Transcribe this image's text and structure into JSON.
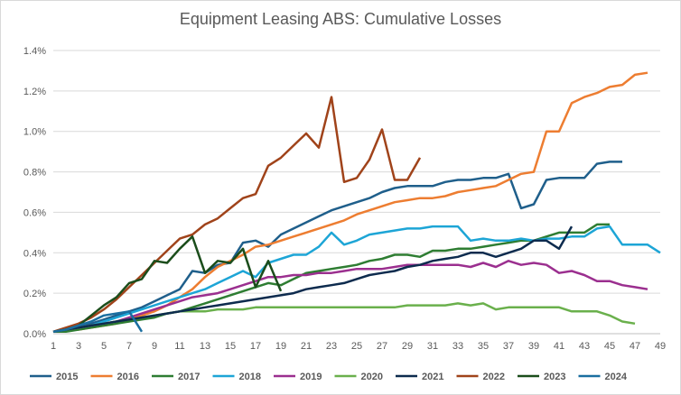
{
  "chart_data": {
    "type": "line",
    "title": "Equipment Leasing ABS: Cumulative Losses",
    "xlabel": "",
    "ylabel": "",
    "xlim": [
      1,
      49
    ],
    "ylim": [
      0,
      0.014
    ],
    "x_ticks": [
      1,
      3,
      5,
      7,
      9,
      11,
      13,
      15,
      17,
      19,
      21,
      23,
      25,
      27,
      29,
      31,
      33,
      35,
      37,
      39,
      41,
      43,
      45,
      47,
      49
    ],
    "y_ticks": [
      {
        "value": 0,
        "label": "0.0%"
      },
      {
        "value": 0.002,
        "label": "0.2%"
      },
      {
        "value": 0.004,
        "label": "0.4%"
      },
      {
        "value": 0.006,
        "label": "0.6%"
      },
      {
        "value": 0.008,
        "label": "0.8%"
      },
      {
        "value": 0.01,
        "label": "1.0%"
      },
      {
        "value": 0.012,
        "label": "1.2%"
      },
      {
        "value": 0.014,
        "label": "1.4%"
      }
    ],
    "grid": true,
    "legend_position": "bottom",
    "series": [
      {
        "name": "2015",
        "color": "#1f5f8b",
        "x_start": 1,
        "values": [
          0.0001,
          0.0002,
          0.0003,
          0.0005,
          0.0007,
          0.0009,
          0.0011,
          0.0013,
          0.0016,
          0.0019,
          0.0022,
          0.0031,
          0.003,
          0.0034,
          0.0035,
          0.0045,
          0.0046,
          0.0043,
          0.0049,
          0.0052,
          0.0055,
          0.0058,
          0.0061,
          0.0063,
          0.0065,
          0.0067,
          0.007,
          0.0072,
          0.0073,
          0.0073,
          0.0073,
          0.0075,
          0.0076,
          0.0076,
          0.0077,
          0.0077,
          0.0079,
          0.0062,
          0.0064,
          0.0076,
          0.0077,
          0.0077,
          0.0077,
          0.0084,
          0.0085,
          0.0085
        ]
      },
      {
        "name": "2016",
        "color": "#ed7d31",
        "x_start": 1,
        "values": [
          0.0001,
          0.0002,
          0.0002,
          0.0003,
          0.0004,
          0.0005,
          0.0007,
          0.0009,
          0.0011,
          0.0014,
          0.0018,
          0.0022,
          0.0028,
          0.0033,
          0.0036,
          0.0039,
          0.0043,
          0.0044,
          0.0046,
          0.0048,
          0.005,
          0.0052,
          0.0054,
          0.0056,
          0.0059,
          0.0061,
          0.0063,
          0.0065,
          0.0066,
          0.0067,
          0.0067,
          0.0068,
          0.007,
          0.0071,
          0.0072,
          0.0073,
          0.0076,
          0.0079,
          0.008,
          0.01,
          0.01,
          0.0114,
          0.0117,
          0.0119,
          0.0122,
          0.0123,
          0.0128,
          0.0129
        ]
      },
      {
        "name": "2017",
        "color": "#2e7d32",
        "x_start": 1,
        "values": [
          0.0001,
          0.0001,
          0.0002,
          0.0003,
          0.0004,
          0.0005,
          0.0006,
          0.0007,
          0.0008,
          0.001,
          0.0011,
          0.0013,
          0.0015,
          0.0017,
          0.0019,
          0.0021,
          0.0023,
          0.0025,
          0.0024,
          0.0027,
          0.003,
          0.0031,
          0.0032,
          0.0033,
          0.0034,
          0.0036,
          0.0037,
          0.0039,
          0.0039,
          0.0038,
          0.0041,
          0.0041,
          0.0042,
          0.0042,
          0.0043,
          0.0044,
          0.0045,
          0.0046,
          0.0046,
          0.0048,
          0.005,
          0.005,
          0.005,
          0.0054,
          0.0054
        ]
      },
      {
        "name": "2018",
        "color": "#1da5d6",
        "x_start": 1,
        "values": [
          0.0001,
          0.0002,
          0.0003,
          0.0004,
          0.0006,
          0.0008,
          0.001,
          0.0012,
          0.0014,
          0.0016,
          0.0018,
          0.002,
          0.0022,
          0.0025,
          0.0028,
          0.0031,
          0.0028,
          0.0035,
          0.0037,
          0.0039,
          0.0039,
          0.0043,
          0.005,
          0.0044,
          0.0046,
          0.0049,
          0.005,
          0.0051,
          0.0052,
          0.0052,
          0.0053,
          0.0053,
          0.0053,
          0.0046,
          0.0047,
          0.0046,
          0.0046,
          0.0047,
          0.0046,
          0.0047,
          0.0047,
          0.0048,
          0.0048,
          0.0052,
          0.0053,
          0.0044,
          0.0044,
          0.0044,
          0.004
        ]
      },
      {
        "name": "2019",
        "color": "#9b2f8f",
        "x_start": 1,
        "values": [
          0.0001,
          0.0002,
          0.0003,
          0.0004,
          0.0005,
          0.0006,
          0.0008,
          0.001,
          0.0012,
          0.0014,
          0.0016,
          0.0018,
          0.0019,
          0.002,
          0.0022,
          0.0024,
          0.0026,
          0.0028,
          0.0028,
          0.0029,
          0.0029,
          0.003,
          0.003,
          0.0031,
          0.0032,
          0.0032,
          0.0032,
          0.0033,
          0.0034,
          0.0034,
          0.0034,
          0.0034,
          0.0034,
          0.0033,
          0.0035,
          0.0033,
          0.0036,
          0.0034,
          0.0035,
          0.0034,
          0.003,
          0.0031,
          0.0029,
          0.0026,
          0.0026,
          0.0024,
          0.0023,
          0.0022
        ]
      },
      {
        "name": "2020",
        "color": "#6ab04c",
        "x_start": 1,
        "values": [
          0.0001,
          0.0002,
          0.0003,
          0.0004,
          0.0005,
          0.0006,
          0.0007,
          0.0008,
          0.0009,
          0.001,
          0.0011,
          0.0011,
          0.0011,
          0.0012,
          0.0012,
          0.0012,
          0.0013,
          0.0013,
          0.0013,
          0.0013,
          0.0013,
          0.0013,
          0.0013,
          0.0013,
          0.0013,
          0.0013,
          0.0013,
          0.0013,
          0.0014,
          0.0014,
          0.0014,
          0.0014,
          0.0015,
          0.0014,
          0.0015,
          0.0012,
          0.0013,
          0.0013,
          0.0013,
          0.0013,
          0.0013,
          0.0011,
          0.0011,
          0.0011,
          0.0009,
          0.0006,
          0.0005
        ]
      },
      {
        "name": "2021",
        "color": "#0d2b4e",
        "x_start": 1,
        "values": [
          0.0001,
          0.0002,
          0.0003,
          0.0004,
          0.0005,
          0.0006,
          0.0007,
          0.0008,
          0.0009,
          0.001,
          0.0011,
          0.0012,
          0.0013,
          0.0014,
          0.0015,
          0.0016,
          0.0017,
          0.0018,
          0.0019,
          0.002,
          0.0022,
          0.0023,
          0.0024,
          0.0025,
          0.0027,
          0.0029,
          0.003,
          0.0031,
          0.0033,
          0.0034,
          0.0036,
          0.0037,
          0.0038,
          0.004,
          0.004,
          0.0038,
          0.004,
          0.0042,
          0.0046,
          0.0046,
          0.0042,
          0.0053
        ]
      },
      {
        "name": "2022",
        "color": "#a0431a",
        "x_start": 1,
        "values": [
          0.0001,
          0.0003,
          0.0005,
          0.0008,
          0.0012,
          0.0017,
          0.0023,
          0.0029,
          0.0035,
          0.0041,
          0.0047,
          0.0049,
          0.0054,
          0.0057,
          0.0062,
          0.0067,
          0.0069,
          0.0083,
          0.0087,
          0.0093,
          0.0099,
          0.0092,
          0.0117,
          0.0075,
          0.0077,
          0.0086,
          0.0101,
          0.0076,
          0.0076,
          0.0087
        ]
      },
      {
        "name": "2023",
        "color": "#1b4d1b",
        "x_start": 1,
        "values": [
          0.0001,
          0.0002,
          0.0004,
          0.0009,
          0.0014,
          0.0018,
          0.0025,
          0.0027,
          0.0036,
          0.0035,
          0.0042,
          0.0048,
          0.003,
          0.0036,
          0.0035,
          0.0042,
          0.0023,
          0.0036,
          0.0021
        ]
      },
      {
        "name": "2024",
        "color": "#1a6ea0",
        "x_start": 1,
        "values": [
          0.0001,
          0.0002,
          0.0004,
          0.0006,
          0.0009,
          0.001,
          0.0011,
          0.0001
        ]
      }
    ]
  }
}
